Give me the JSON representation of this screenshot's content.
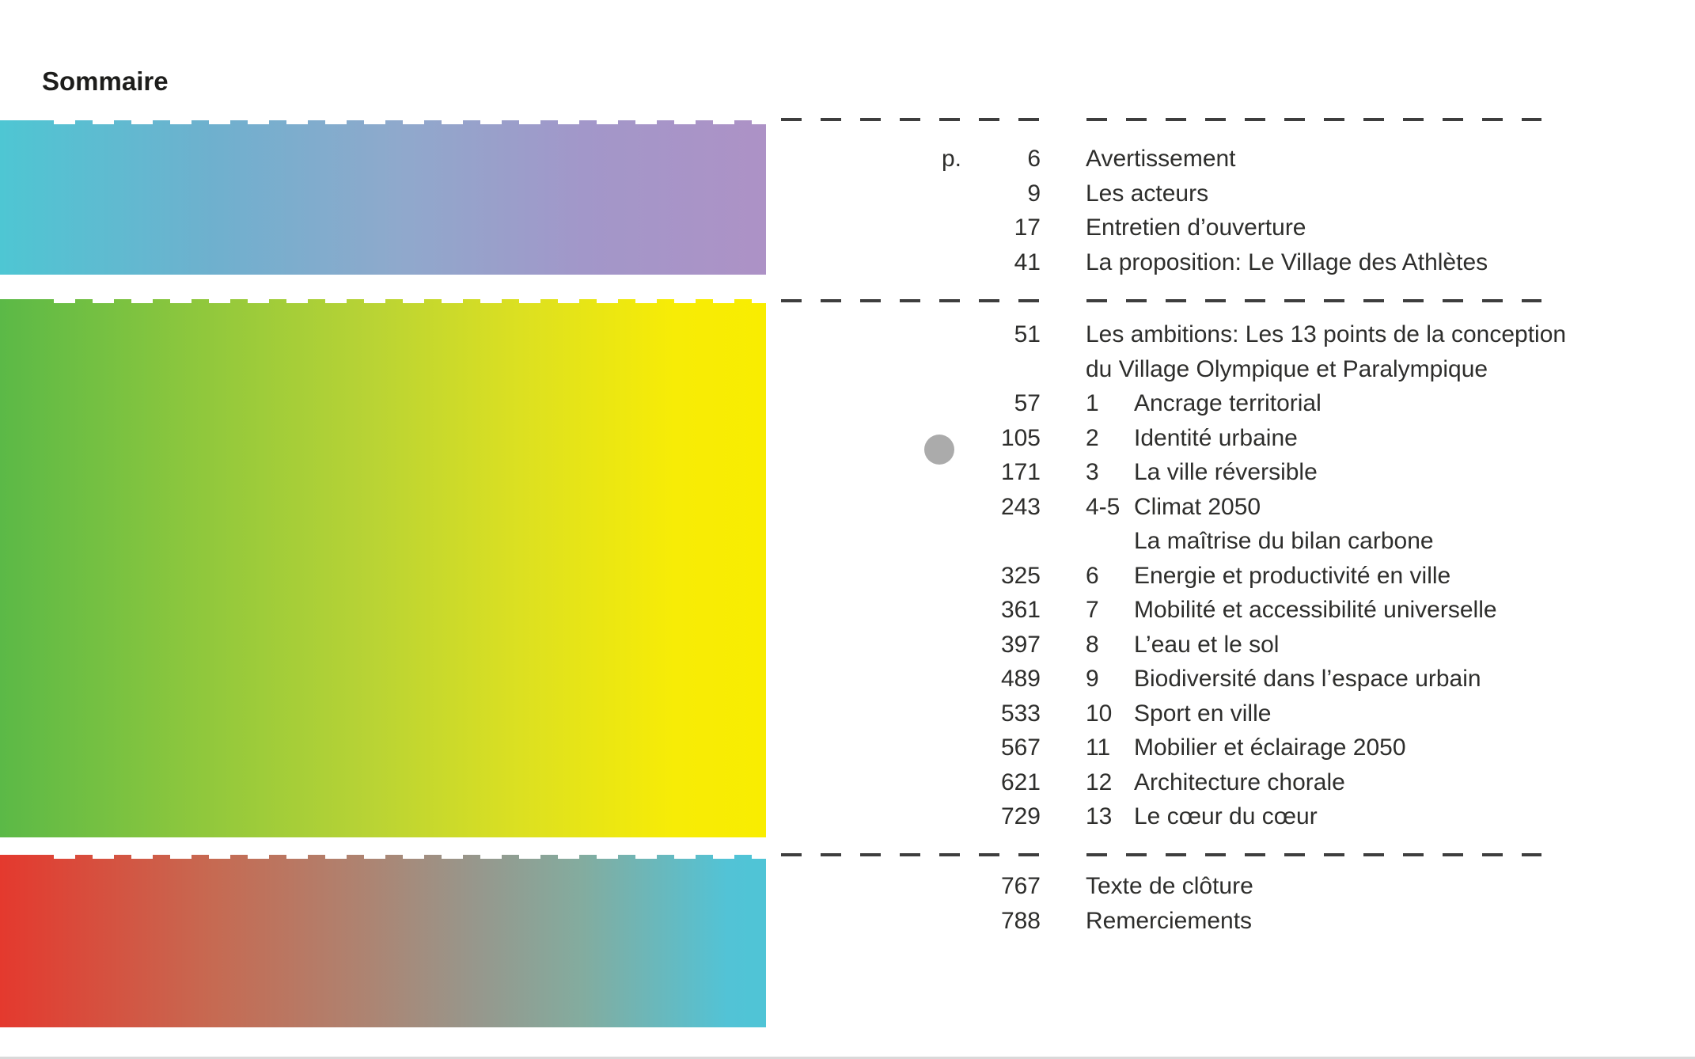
{
  "page": {
    "title": "Sommaire"
  },
  "colors": {
    "background": "#ffffff",
    "text": "#2e2e2c",
    "title_text": "#1d1d1b",
    "dash": "#3e3e3e",
    "marker_dot": "#ababab",
    "bottom_hairline": "#d9d9d9"
  },
  "bars": [
    {
      "name": "cyan-to-purple",
      "gradient": [
        "#4ec6d3 0%",
        "#6fb0ce 28%",
        "#8fa9cc 52%",
        "#a297c9 76%",
        "#ad92c6 100%"
      ]
    },
    {
      "name": "green-to-yellow",
      "gradient": [
        "#5bb947 0%",
        "#8dc73d 25%",
        "#b8d335 48%",
        "#dce021 68%",
        "#f7ec06 88%",
        "#f9ed00 100%"
      ]
    },
    {
      "name": "red-to-cyan",
      "gradient": [
        "#e4392e 0%",
        "#c66a52 28%",
        "#ad8472 48%",
        "#97978c 62%",
        "#83ac9f 76%",
        "#52c3d6 95%",
        "#4fc4d6 100%"
      ]
    }
  ],
  "toc": {
    "p_label": "p.",
    "groups": [
      {
        "rows": [
          {
            "page": "6",
            "title": "Avertissement"
          },
          {
            "page": "9",
            "title": "Les acteurs"
          },
          {
            "page": "17",
            "title": "Entretien d’ouverture"
          },
          {
            "page": "41",
            "title": "La proposition: Le Village des Athlètes"
          }
        ]
      },
      {
        "rows": [
          {
            "page": "51",
            "chapter": "",
            "title": "Les ambitions: Les 13 points de la conception"
          },
          {
            "page": "",
            "chapter": "",
            "title": "du Village Olympique et Paralympique"
          },
          {
            "page": "57",
            "chapter": "1",
            "title": "Ancrage territorial"
          },
          {
            "page": "105",
            "chapter": "2",
            "title": "Identité urbaine"
          },
          {
            "page": "171",
            "chapter": "3",
            "title": "La ville réversible"
          },
          {
            "page": "243",
            "chapter": "4-5",
            "title": "Climat 2050"
          },
          {
            "page": "",
            "chapter": "",
            "title": "La maîtrise du bilan carbone"
          },
          {
            "page": "325",
            "chapter": "6",
            "title": "Energie et productivité en ville"
          },
          {
            "page": "361",
            "chapter": "7",
            "title": "Mobilité et accessibilité universelle"
          },
          {
            "page": "397",
            "chapter": "8",
            "title": "L’eau et le sol"
          },
          {
            "page": "489",
            "chapter": "9",
            "title": "Biodiversité dans l’espace urbain"
          },
          {
            "page": "533",
            "chapter": "10",
            "title": "Sport en ville"
          },
          {
            "page": "567",
            "chapter": "11",
            "title": "Mobilier et éclairage 2050"
          },
          {
            "page": "621",
            "chapter": "12",
            "title": "Architecture chorale"
          },
          {
            "page": "729",
            "chapter": "13",
            "title": "Le cœur du cœur"
          }
        ]
      },
      {
        "rows": [
          {
            "page": "767",
            "title": "Texte de clôture"
          },
          {
            "page": "788",
            "title": "Remerciements"
          }
        ]
      }
    ]
  }
}
